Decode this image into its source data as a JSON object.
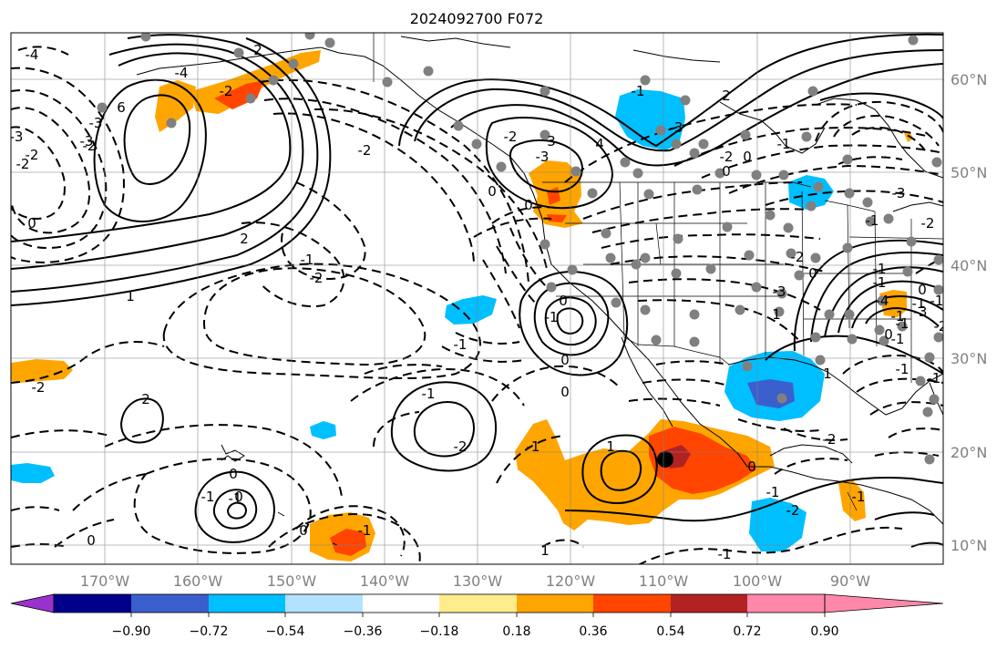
{
  "figure": {
    "title": "2024092700 F072",
    "lon_ticks": [
      "170°W",
      "160°W",
      "150°W",
      "140°W",
      "130°W",
      "120°W",
      "110°W",
      "100°W",
      "90°W"
    ],
    "lat_ticks": [
      "60°N",
      "50°N",
      "40°N",
      "30°N",
      "20°N",
      "10°N"
    ],
    "extent": {
      "lon_min": -180,
      "lon_max": -80,
      "lat_min": 8,
      "lat_max": 65
    }
  },
  "colorbar": {
    "tick_labels": [
      "−0.90",
      "−0.72",
      "−0.54",
      "−0.36",
      "−0.18",
      "0.18",
      "0.36",
      "0.54",
      "0.72",
      "0.90"
    ],
    "colors": [
      "#9932cc",
      "#00008b",
      "#3a5fcd",
      "#00bfff",
      "#b2e2ff",
      "#ffffff",
      "#ffec8b",
      "#ffa500",
      "#ff4500",
      "#b22222",
      "#ff88aa"
    ]
  },
  "contour_labels": [
    "-4",
    "6",
    "-3",
    "-3",
    "-2",
    "2",
    "-2",
    "0",
    "-4",
    "-2",
    "-3",
    "-2",
    "-1",
    "-2",
    "2",
    "3",
    "4",
    "-2",
    "-3",
    "-2",
    "0",
    "1",
    "0",
    "-1",
    "2",
    "-2",
    "-3",
    "0",
    "0",
    "-1",
    "-1",
    "0",
    "-1",
    "0",
    "-1",
    "-2",
    "2",
    "0",
    "0",
    "-1",
    "-1",
    "-2",
    "0",
    "1",
    "0",
    "-1",
    "0",
    "-1",
    "1",
    "-1",
    "-3",
    "-2",
    "0",
    "1",
    "-1",
    "-1",
    "-1",
    "-1",
    "-4",
    "-3",
    "-2",
    "-1",
    "0",
    "1",
    "-1",
    "-1",
    "0",
    "-1",
    "-2",
    "-1",
    "-3",
    "-2",
    "-1",
    "0",
    "-1",
    "-2",
    "-1"
  ],
  "chart_data": {
    "type": "map",
    "title": "2024092700 F072",
    "colorbar_levels": [
      -0.9,
      -0.72,
      -0.54,
      -0.36,
      -0.18,
      0.18,
      0.36,
      0.54,
      0.72,
      0.9
    ],
    "colorbar_extend": "both",
    "projection": "lat-lon",
    "lon_range": [
      -180,
      -80
    ],
    "lat_range": [
      8,
      65
    ]
  }
}
